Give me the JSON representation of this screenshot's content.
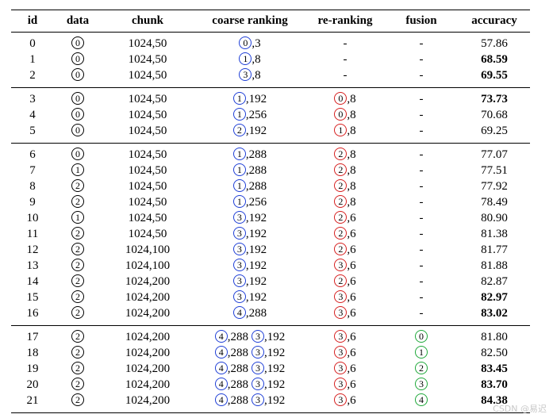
{
  "table": {
    "columns": [
      {
        "label": "id"
      },
      {
        "label": "data",
        "circle_color": "#000000"
      },
      {
        "label": "chunk"
      },
      {
        "label": "coarse ranking",
        "circle_color": "#1f3fd6"
      },
      {
        "label": "re-ranking",
        "circle_color": "#d61f1f"
      },
      {
        "label": "fusion",
        "circle_color": "#1fa83a"
      },
      {
        "label": "accuracy"
      }
    ],
    "groups": [
      {
        "rows": [
          {
            "cells": [
              "0",
              {
                "circled": [
                  {
                    "n": "0"
                  }
                ]
              },
              "1024,50",
              {
                "circled": [
                  {
                    "n": "0",
                    "suffix": ",3"
                  }
                ]
              },
              "-",
              "-",
              {
                "text": "57.86",
                "bold": false
              }
            ]
          },
          {
            "cells": [
              "1",
              {
                "circled": [
                  {
                    "n": "0"
                  }
                ]
              },
              "1024,50",
              {
                "circled": [
                  {
                    "n": "1",
                    "suffix": ",8"
                  }
                ]
              },
              "-",
              "-",
              {
                "text": "68.59",
                "bold": true
              }
            ]
          },
          {
            "cells": [
              "2",
              {
                "circled": [
                  {
                    "n": "0"
                  }
                ]
              },
              "1024,50",
              {
                "circled": [
                  {
                    "n": "3",
                    "suffix": ",8"
                  }
                ]
              },
              "-",
              "-",
              {
                "text": "69.55",
                "bold": true
              }
            ]
          }
        ]
      },
      {
        "rows": [
          {
            "cells": [
              "3",
              {
                "circled": [
                  {
                    "n": "0"
                  }
                ]
              },
              "1024,50",
              {
                "circled": [
                  {
                    "n": "1",
                    "suffix": ",192"
                  }
                ]
              },
              {
                "circled": [
                  {
                    "n": "0",
                    "suffix": ",8"
                  }
                ]
              },
              "-",
              {
                "text": "73.73",
                "bold": true
              }
            ]
          },
          {
            "cells": [
              "4",
              {
                "circled": [
                  {
                    "n": "0"
                  }
                ]
              },
              "1024,50",
              {
                "circled": [
                  {
                    "n": "1",
                    "suffix": ",256"
                  }
                ]
              },
              {
                "circled": [
                  {
                    "n": "0",
                    "suffix": ",8"
                  }
                ]
              },
              "-",
              {
                "text": "70.68",
                "bold": false
              }
            ]
          },
          {
            "cells": [
              "5",
              {
                "circled": [
                  {
                    "n": "0"
                  }
                ]
              },
              "1024,50",
              {
                "circled": [
                  {
                    "n": "2",
                    "suffix": ",192"
                  }
                ]
              },
              {
                "circled": [
                  {
                    "n": "1",
                    "suffix": ",8"
                  }
                ]
              },
              "-",
              {
                "text": "69.25",
                "bold": false
              }
            ]
          }
        ]
      },
      {
        "rows": [
          {
            "cells": [
              "6",
              {
                "circled": [
                  {
                    "n": "0"
                  }
                ]
              },
              "1024,50",
              {
                "circled": [
                  {
                    "n": "1",
                    "suffix": ",288"
                  }
                ]
              },
              {
                "circled": [
                  {
                    "n": "2",
                    "suffix": ",8"
                  }
                ]
              },
              "-",
              {
                "text": "77.07",
                "bold": false
              }
            ]
          },
          {
            "cells": [
              "7",
              {
                "circled": [
                  {
                    "n": "1"
                  }
                ]
              },
              "1024,50",
              {
                "circled": [
                  {
                    "n": "1",
                    "suffix": ",288"
                  }
                ]
              },
              {
                "circled": [
                  {
                    "n": "2",
                    "suffix": ",8"
                  }
                ]
              },
              "-",
              {
                "text": "77.51",
                "bold": false
              }
            ]
          },
          {
            "cells": [
              "8",
              {
                "circled": [
                  {
                    "n": "2"
                  }
                ]
              },
              "1024,50",
              {
                "circled": [
                  {
                    "n": "1",
                    "suffix": ",288"
                  }
                ]
              },
              {
                "circled": [
                  {
                    "n": "2",
                    "suffix": ",8"
                  }
                ]
              },
              "-",
              {
                "text": "77.92",
                "bold": false
              }
            ]
          },
          {
            "cells": [
              "9",
              {
                "circled": [
                  {
                    "n": "2"
                  }
                ]
              },
              "1024,50",
              {
                "circled": [
                  {
                    "n": "1",
                    "suffix": ",256"
                  }
                ]
              },
              {
                "circled": [
                  {
                    "n": "2",
                    "suffix": ",8"
                  }
                ]
              },
              "-",
              {
                "text": "78.49",
                "bold": false
              }
            ]
          },
          {
            "cells": [
              "10",
              {
                "circled": [
                  {
                    "n": "1"
                  }
                ]
              },
              "1024,50",
              {
                "circled": [
                  {
                    "n": "3",
                    "suffix": ",192"
                  }
                ]
              },
              {
                "circled": [
                  {
                    "n": "2",
                    "suffix": ",6"
                  }
                ]
              },
              "-",
              {
                "text": "80.90",
                "bold": false
              }
            ]
          },
          {
            "cells": [
              "11",
              {
                "circled": [
                  {
                    "n": "2"
                  }
                ]
              },
              "1024,50",
              {
                "circled": [
                  {
                    "n": "3",
                    "suffix": ",192"
                  }
                ]
              },
              {
                "circled": [
                  {
                    "n": "2",
                    "suffix": ",6"
                  }
                ]
              },
              "-",
              {
                "text": "81.38",
                "bold": false
              }
            ]
          },
          {
            "cells": [
              "12",
              {
                "circled": [
                  {
                    "n": "2"
                  }
                ]
              },
              "1024,100",
              {
                "circled": [
                  {
                    "n": "3",
                    "suffix": ",192"
                  }
                ]
              },
              {
                "circled": [
                  {
                    "n": "2",
                    "suffix": ",6"
                  }
                ]
              },
              "-",
              {
                "text": "81.77",
                "bold": false
              }
            ]
          },
          {
            "cells": [
              "13",
              {
                "circled": [
                  {
                    "n": "2"
                  }
                ]
              },
              "1024,100",
              {
                "circled": [
                  {
                    "n": "3",
                    "suffix": ",192"
                  }
                ]
              },
              {
                "circled": [
                  {
                    "n": "3",
                    "suffix": ",6"
                  }
                ]
              },
              "-",
              {
                "text": "81.88",
                "bold": false
              }
            ]
          },
          {
            "cells": [
              "14",
              {
                "circled": [
                  {
                    "n": "2"
                  }
                ]
              },
              "1024,200",
              {
                "circled": [
                  {
                    "n": "3",
                    "suffix": ",192"
                  }
                ]
              },
              {
                "circled": [
                  {
                    "n": "2",
                    "suffix": ",6"
                  }
                ]
              },
              "-",
              {
                "text": "82.87",
                "bold": false
              }
            ]
          },
          {
            "cells": [
              "15",
              {
                "circled": [
                  {
                    "n": "2"
                  }
                ]
              },
              "1024,200",
              {
                "circled": [
                  {
                    "n": "3",
                    "suffix": ",192"
                  }
                ]
              },
              {
                "circled": [
                  {
                    "n": "3",
                    "suffix": ",6"
                  }
                ]
              },
              "-",
              {
                "text": "82.97",
                "bold": true
              }
            ]
          },
          {
            "cells": [
              "16",
              {
                "circled": [
                  {
                    "n": "2"
                  }
                ]
              },
              "1024,200",
              {
                "circled": [
                  {
                    "n": "4",
                    "suffix": ",288"
                  }
                ]
              },
              {
                "circled": [
                  {
                    "n": "3",
                    "suffix": ",6"
                  }
                ]
              },
              "-",
              {
                "text": "83.02",
                "bold": true
              }
            ]
          }
        ]
      },
      {
        "rows": [
          {
            "cells": [
              "17",
              {
                "circled": [
                  {
                    "n": "2"
                  }
                ]
              },
              "1024,200",
              {
                "circled": [
                  {
                    "n": "4",
                    "suffix": ",288"
                  },
                  {
                    "n": "3",
                    "suffix": ",192"
                  }
                ]
              },
              {
                "circled": [
                  {
                    "n": "3",
                    "suffix": ",6"
                  }
                ]
              },
              {
                "circled": [
                  {
                    "n": "0"
                  }
                ]
              },
              {
                "text": "81.80",
                "bold": false
              }
            ]
          },
          {
            "cells": [
              "18",
              {
                "circled": [
                  {
                    "n": "2"
                  }
                ]
              },
              "1024,200",
              {
                "circled": [
                  {
                    "n": "4",
                    "suffix": ",288"
                  },
                  {
                    "n": "3",
                    "suffix": ",192"
                  }
                ]
              },
              {
                "circled": [
                  {
                    "n": "3",
                    "suffix": ",6"
                  }
                ]
              },
              {
                "circled": [
                  {
                    "n": "1"
                  }
                ]
              },
              {
                "text": "82.50",
                "bold": false
              }
            ]
          },
          {
            "cells": [
              "19",
              {
                "circled": [
                  {
                    "n": "2"
                  }
                ]
              },
              "1024,200",
              {
                "circled": [
                  {
                    "n": "4",
                    "suffix": ",288"
                  },
                  {
                    "n": "3",
                    "suffix": ",192"
                  }
                ]
              },
              {
                "circled": [
                  {
                    "n": "3",
                    "suffix": ",6"
                  }
                ]
              },
              {
                "circled": [
                  {
                    "n": "2"
                  }
                ]
              },
              {
                "text": "83.45",
                "bold": true
              }
            ]
          },
          {
            "cells": [
              "20",
              {
                "circled": [
                  {
                    "n": "2"
                  }
                ]
              },
              "1024,200",
              {
                "circled": [
                  {
                    "n": "4",
                    "suffix": ",288"
                  },
                  {
                    "n": "3",
                    "suffix": ",192"
                  }
                ]
              },
              {
                "circled": [
                  {
                    "n": "3",
                    "suffix": ",6"
                  }
                ]
              },
              {
                "circled": [
                  {
                    "n": "3"
                  }
                ]
              },
              {
                "text": "83.70",
                "bold": true
              }
            ]
          },
          {
            "cells": [
              "21",
              {
                "circled": [
                  {
                    "n": "2"
                  }
                ]
              },
              "1024,200",
              {
                "circled": [
                  {
                    "n": "4",
                    "suffix": ",288"
                  },
                  {
                    "n": "3",
                    "suffix": ",192"
                  }
                ]
              },
              {
                "circled": [
                  {
                    "n": "3",
                    "suffix": ",6"
                  }
                ]
              },
              {
                "circled": [
                  {
                    "n": "4"
                  }
                ]
              },
              {
                "text": "84.38",
                "bold": true
              }
            ]
          }
        ]
      }
    ]
  },
  "watermark": "CSDN @易迟"
}
